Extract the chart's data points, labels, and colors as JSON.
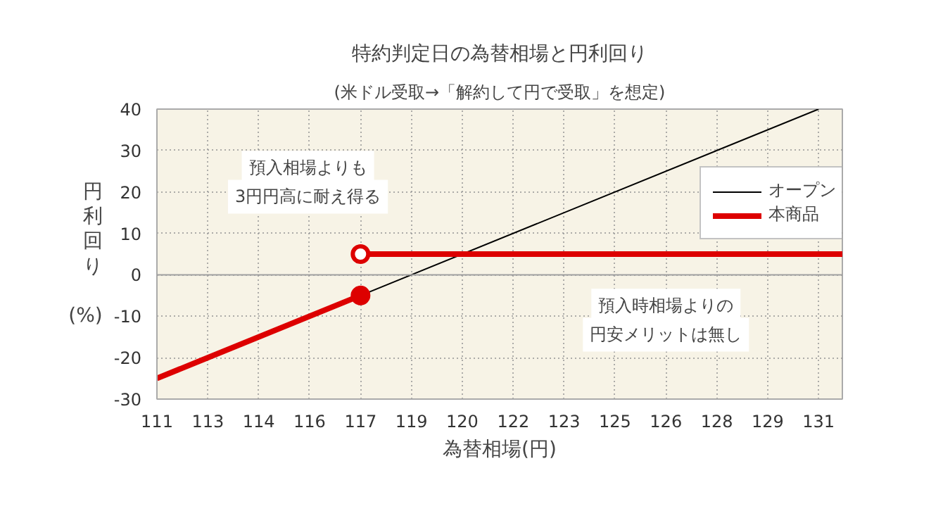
{
  "chart_data": {
    "type": "line",
    "title": "特約判定日の為替相場と円利回り",
    "subtitle": "(米ドル受取→「解約して円で受取」を想定)",
    "xlabel": "為替相場(円)",
    "ylabel": "円利回り(%)",
    "xlim": [
      111,
      131.2
    ],
    "ylim": [
      -30,
      40
    ],
    "xticks": [
      111,
      {
        "value": 112.5,
        "label": "113"
      },
      114,
      {
        "value": 115.5,
        "label": "116"
      },
      117,
      {
        "value": 118.5,
        "label": "119"
      },
      120,
      {
        "value": 121.5,
        "label": "122"
      },
      123,
      {
        "value": 124.5,
        "label": "125"
      },
      126,
      {
        "value": 127.5,
        "label": "128"
      },
      129,
      {
        "value": 130.5,
        "label": "131"
      }
    ],
    "yticks": [
      -30,
      -20,
      -10,
      0,
      10,
      20,
      30,
      40
    ],
    "grid": true,
    "legend": "top right",
    "ref_lines": [
      {
        "axis": "y",
        "value": 0,
        "color": "#a0a0a0"
      }
    ],
    "series": [
      {
        "name": "オープン",
        "color": "#000000",
        "x": [
          117,
          130.5
        ],
        "values": [
          -5,
          40
        ]
      },
      {
        "name": "本商品",
        "color": "#dd0000",
        "x": [
          111,
          117
        ],
        "values": [
          -25,
          -5
        ]
      },
      {
        "color": "#dd0000",
        "x": [
          117,
          131.2
        ],
        "values": [
          5,
          5
        ]
      },
      {
        "type": "scatter",
        "color": "#dd0000",
        "x": [
          117
        ],
        "values": [
          -5
        ]
      },
      {
        "type": "scatter",
        "color": "#ffffff",
        "x": [
          117
        ],
        "values": [
          5
        ]
      }
    ],
    "annotations": [
      "預入相場よりも",
      "3円円高に耐え得る",
      "預入時相場よりの",
      "円安メリットは無し"
    ]
  }
}
